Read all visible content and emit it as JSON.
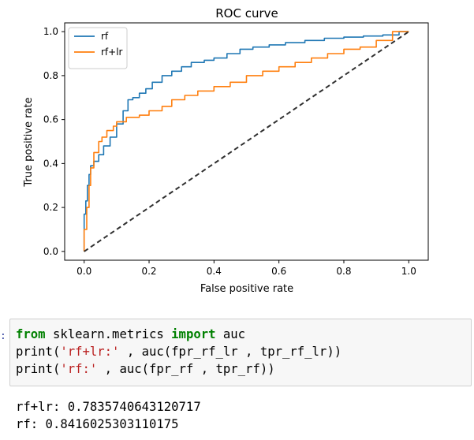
{
  "chart_data": {
    "type": "line",
    "title": "ROC curve",
    "xlabel": "False positive rate",
    "ylabel": "True positive rate",
    "xlim": [
      -0.06,
      1.06
    ],
    "ylim": [
      -0.04,
      1.04
    ],
    "x_ticks": [
      "0.0",
      "0.2",
      "0.4",
      "0.6",
      "0.8",
      "1.0"
    ],
    "y_ticks": [
      "0.0",
      "0.2",
      "0.4",
      "0.6",
      "0.8",
      "1.0"
    ],
    "grid": false,
    "legend": "top-left",
    "series": [
      {
        "name": "rf",
        "color": "#1f77b4",
        "x": [
          0,
          0,
          0.005,
          0.005,
          0.01,
          0.01,
          0.015,
          0.015,
          0.02,
          0.02,
          0.03,
          0.03,
          0.045,
          0.045,
          0.06,
          0.06,
          0.08,
          0.08,
          0.1,
          0.1,
          0.12,
          0.12,
          0.135,
          0.135,
          0.15,
          0.15,
          0.17,
          0.17,
          0.19,
          0.19,
          0.21,
          0.21,
          0.24,
          0.24,
          0.27,
          0.27,
          0.3,
          0.3,
          0.33,
          0.33,
          0.37,
          0.37,
          0.4,
          0.4,
          0.44,
          0.44,
          0.48,
          0.48,
          0.52,
          0.52,
          0.57,
          0.57,
          0.62,
          0.62,
          0.68,
          0.68,
          0.74,
          0.74,
          0.8,
          0.8,
          0.86,
          0.86,
          0.92,
          0.92,
          0.97,
          0.97,
          1.0
        ],
        "y": [
          0,
          0.17,
          0.17,
          0.23,
          0.23,
          0.3,
          0.3,
          0.35,
          0.35,
          0.39,
          0.39,
          0.41,
          0.41,
          0.44,
          0.44,
          0.48,
          0.48,
          0.52,
          0.52,
          0.58,
          0.58,
          0.64,
          0.64,
          0.69,
          0.69,
          0.7,
          0.7,
          0.72,
          0.72,
          0.74,
          0.74,
          0.77,
          0.77,
          0.8,
          0.8,
          0.82,
          0.82,
          0.84,
          0.84,
          0.86,
          0.86,
          0.87,
          0.87,
          0.88,
          0.88,
          0.9,
          0.9,
          0.92,
          0.92,
          0.93,
          0.93,
          0.94,
          0.94,
          0.95,
          0.95,
          0.96,
          0.96,
          0.97,
          0.97,
          0.975,
          0.975,
          0.98,
          0.98,
          0.985,
          0.985,
          1.0,
          1.0
        ]
      },
      {
        "name": "rf+lr",
        "color": "#ff7f0e",
        "x": [
          0,
          0,
          0.008,
          0.008,
          0.015,
          0.015,
          0.02,
          0.02,
          0.03,
          0.03,
          0.045,
          0.045,
          0.055,
          0.055,
          0.07,
          0.07,
          0.09,
          0.09,
          0.1,
          0.1,
          0.13,
          0.13,
          0.17,
          0.17,
          0.2,
          0.2,
          0.24,
          0.24,
          0.27,
          0.27,
          0.31,
          0.31,
          0.35,
          0.35,
          0.4,
          0.4,
          0.45,
          0.45,
          0.5,
          0.5,
          0.55,
          0.55,
          0.6,
          0.6,
          0.65,
          0.65,
          0.7,
          0.7,
          0.75,
          0.75,
          0.8,
          0.8,
          0.85,
          0.85,
          0.9,
          0.9,
          0.95,
          0.95,
          1.0
        ],
        "y": [
          0,
          0.1,
          0.1,
          0.2,
          0.2,
          0.3,
          0.3,
          0.38,
          0.38,
          0.45,
          0.45,
          0.5,
          0.5,
          0.52,
          0.52,
          0.55,
          0.55,
          0.57,
          0.57,
          0.59,
          0.59,
          0.61,
          0.61,
          0.62,
          0.62,
          0.64,
          0.64,
          0.66,
          0.66,
          0.69,
          0.69,
          0.71,
          0.71,
          0.73,
          0.73,
          0.75,
          0.75,
          0.77,
          0.77,
          0.8,
          0.8,
          0.82,
          0.82,
          0.84,
          0.84,
          0.86,
          0.86,
          0.88,
          0.88,
          0.9,
          0.9,
          0.92,
          0.92,
          0.93,
          0.93,
          0.96,
          0.96,
          1.0,
          1.0
        ]
      },
      {
        "name": "",
        "color": "#303030",
        "dashed": true,
        "x": [
          0,
          1
        ],
        "y": [
          0,
          1
        ]
      }
    ]
  },
  "notebook": {
    "prompt_marker": ":",
    "code_lines": [
      [
        {
          "t": "from",
          "c": "kw"
        },
        {
          "t": " sklearn.metrics ",
          "c": ""
        },
        {
          "t": "import",
          "c": "kw"
        },
        {
          "t": " auc",
          "c": ""
        }
      ],
      [
        {
          "t": "print(",
          "c": ""
        },
        {
          "t": "'rf+lr:'",
          "c": "str"
        },
        {
          "t": " , auc(fpr_rf_lr , tpr_rf_lr))",
          "c": ""
        }
      ],
      [
        {
          "t": "print(",
          "c": ""
        },
        {
          "t": "'rf:'",
          "c": "str"
        },
        {
          "t": " , auc(fpr_rf , tpr_rf))",
          "c": ""
        }
      ]
    ],
    "output_lines": [
      "rf+lr: 0.7835740643120717",
      "rf: 0.8416025303110175"
    ]
  }
}
